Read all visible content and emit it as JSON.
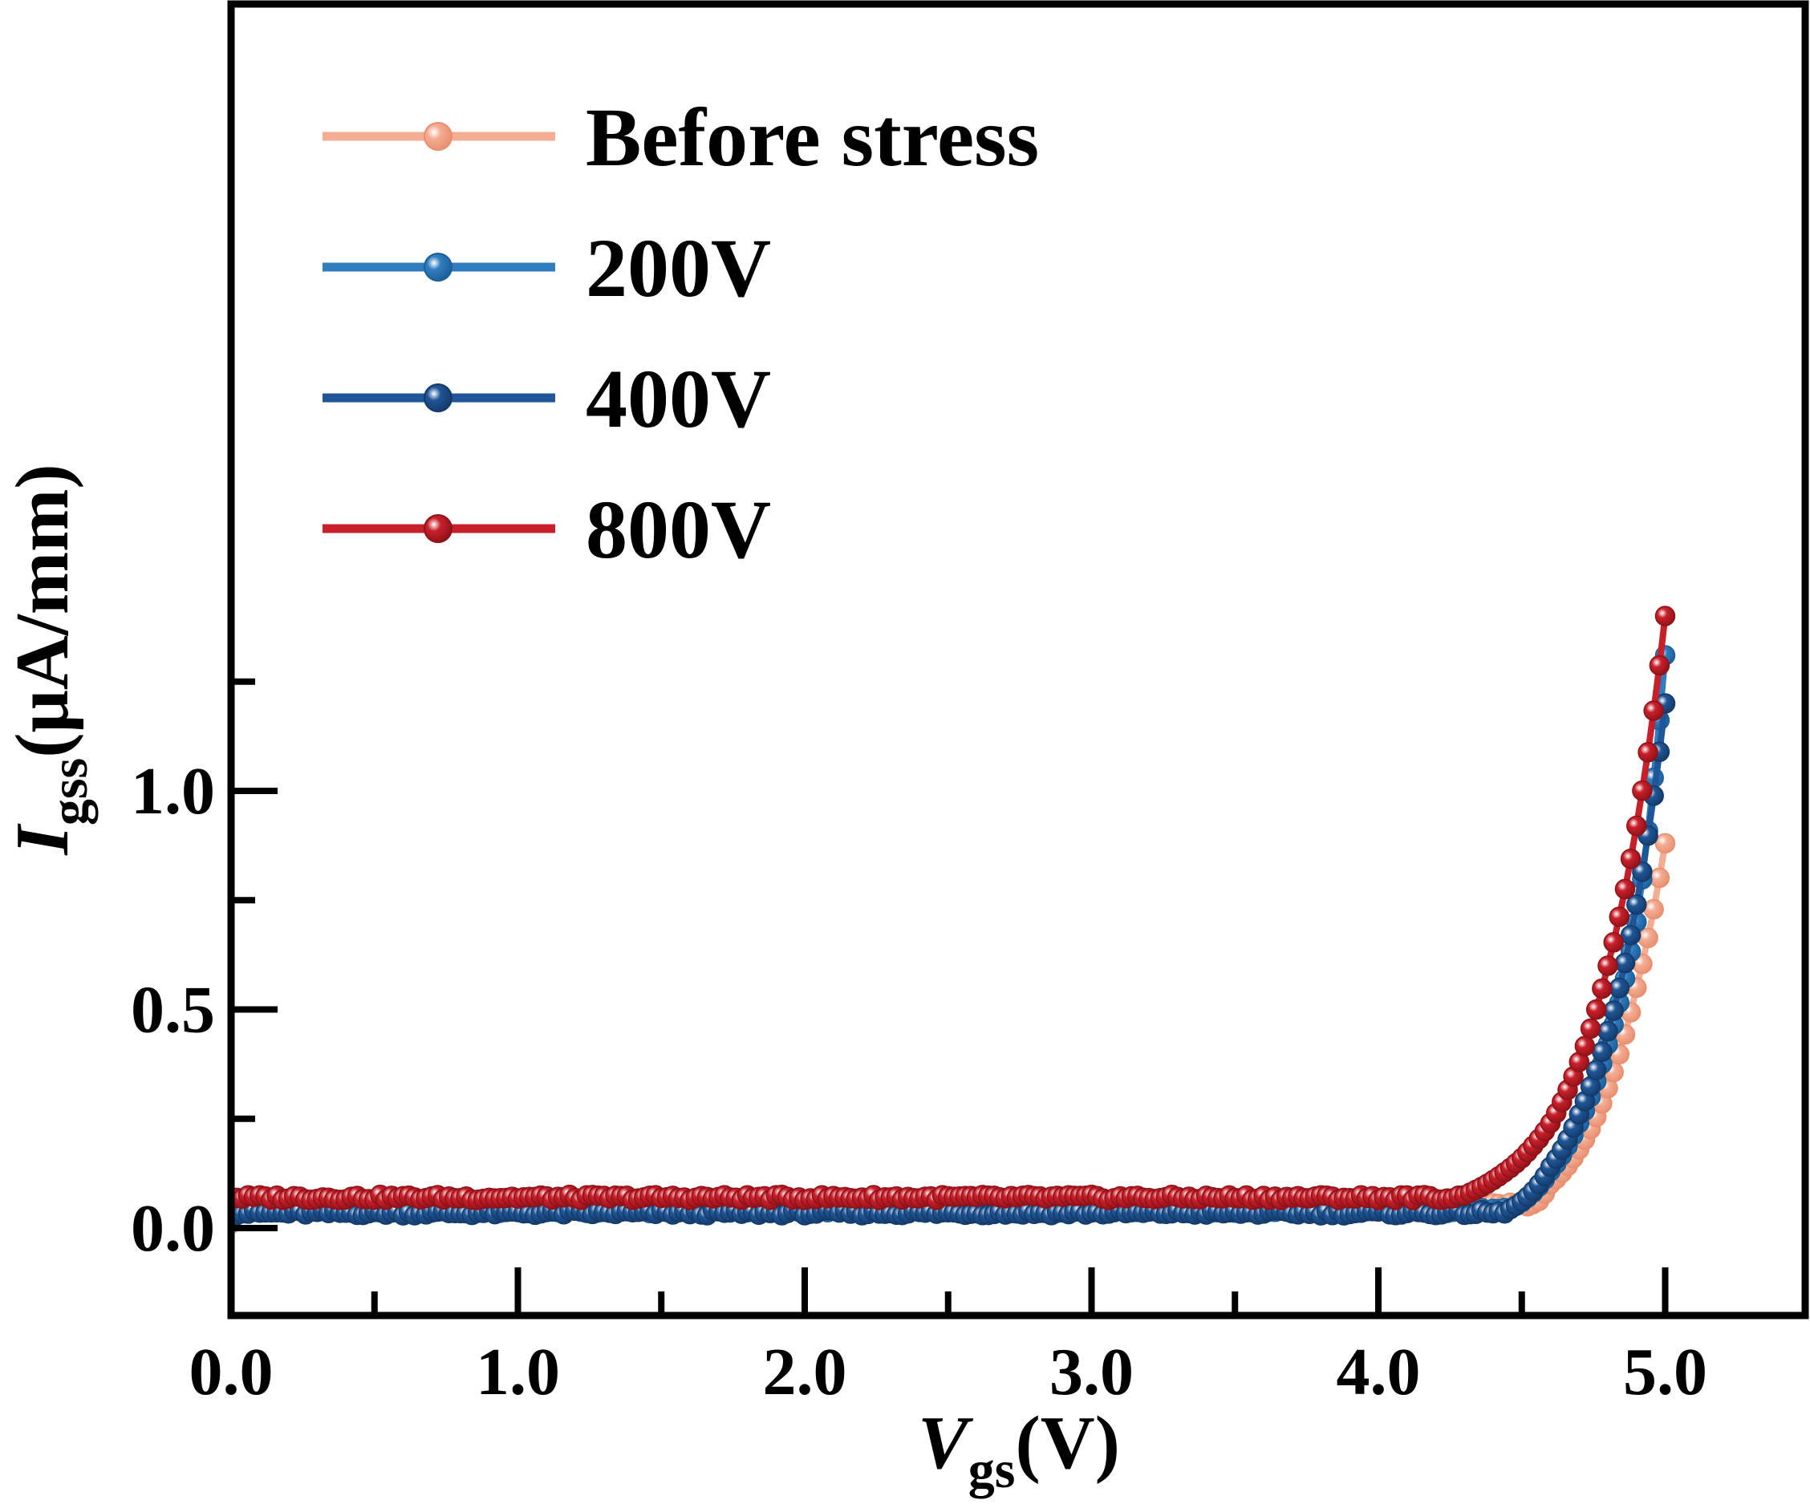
{
  "chart_data": {
    "type": "line",
    "xlabel": {
      "main": "V",
      "sub": "gs",
      "unit": "(V)"
    },
    "ylabel": {
      "main": "I",
      "sub": "gss",
      "unit": "(μA/mm)"
    },
    "xlim": [
      0.0,
      5.5
    ],
    "ylim": [
      -0.1,
      1.4
    ],
    "x_ticks": [
      0.0,
      1.0,
      2.0,
      3.0,
      4.0,
      5.0
    ],
    "x_tick_labels": [
      "0.0",
      "1.0",
      "2.0",
      "3.0",
      "4.0",
      "5.0"
    ],
    "x_minor_ticks": [
      0.5,
      1.5,
      2.5,
      3.5,
      4.5
    ],
    "y_ticks": [
      0.0,
      0.5,
      1.0
    ],
    "y_tick_labels": [
      "0.0",
      "0.5",
      "1.0"
    ],
    "y_minor_ticks": [
      0.25,
      0.75,
      1.25
    ],
    "grid": false,
    "legend_position": "top-left",
    "x_step": 0.02,
    "series": [
      {
        "name": "Before stress",
        "color": "#f4ad93",
        "marker_stroke": "#e88f70",
        "baseline": 0.055,
        "onset": 4.55,
        "knee": [
          [
            4.55,
            0.055
          ],
          [
            4.6,
            0.1
          ],
          [
            4.7,
            0.18
          ],
          [
            4.8,
            0.32
          ],
          [
            4.9,
            0.55
          ],
          [
            5.0,
            0.88
          ]
        ]
      },
      {
        "name": "200V",
        "color": "#2f7dbf",
        "marker_stroke": "#1d5f99",
        "baseline": 0.04,
        "onset": 4.45,
        "knee": [
          [
            4.45,
            0.04
          ],
          [
            4.6,
            0.13
          ],
          [
            4.7,
            0.24
          ],
          [
            4.8,
            0.42
          ],
          [
            4.9,
            0.7
          ],
          [
            4.95,
            0.97
          ],
          [
            5.0,
            1.31
          ]
        ]
      },
      {
        "name": "400V",
        "color": "#1f5697",
        "marker_stroke": "#143a69",
        "baseline": 0.035,
        "onset": 4.45,
        "knee": [
          [
            4.45,
            0.04
          ],
          [
            4.6,
            0.14
          ],
          [
            4.7,
            0.26
          ],
          [
            4.8,
            0.45
          ],
          [
            4.9,
            0.74
          ],
          [
            5.0,
            1.2
          ]
        ]
      },
      {
        "name": "800V",
        "color": "#c8202a",
        "marker_stroke": "#8f1219",
        "baseline": 0.07,
        "onset": 4.3,
        "knee": [
          [
            4.3,
            0.075
          ],
          [
            4.5,
            0.16
          ],
          [
            4.6,
            0.24
          ],
          [
            4.7,
            0.38
          ],
          [
            4.8,
            0.6
          ],
          [
            4.9,
            0.92
          ],
          [
            5.0,
            1.4
          ]
        ]
      }
    ]
  }
}
